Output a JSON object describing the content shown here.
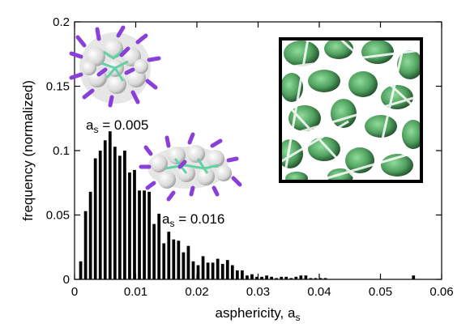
{
  "chart_data": {
    "type": "bar",
    "title": "",
    "xlabel": "asphericity, a",
    "xlabel_sub": "s",
    "ylabel": "frequency (normalized)",
    "xlim": [
      0,
      0.06
    ],
    "ylim": [
      0,
      0.2
    ],
    "xticks": [
      0,
      0.01,
      0.02,
      0.03,
      0.04,
      0.05,
      0.06
    ],
    "xtick_labels": [
      "0",
      "0.01",
      "0.02",
      "0.03",
      "0.04",
      "0.05",
      "0.06"
    ],
    "yticks": [
      0,
      0.05,
      0.1,
      0.15,
      0.2
    ],
    "ytick_labels": [
      "0",
      "0.05",
      "0.1",
      "0.15",
      "0.2"
    ],
    "grid": false,
    "bin_width": 0.0008,
    "x": [
      0.001,
      0.0018,
      0.0026,
      0.0034,
      0.0042,
      0.005,
      0.0058,
      0.0066,
      0.0074,
      0.0082,
      0.009,
      0.0098,
      0.0106,
      0.0114,
      0.0122,
      0.013,
      0.0138,
      0.0146,
      0.0154,
      0.0162,
      0.017,
      0.0178,
      0.0186,
      0.0194,
      0.0202,
      0.021,
      0.0218,
      0.0226,
      0.0234,
      0.0242,
      0.025,
      0.0258,
      0.0266,
      0.0274,
      0.0282,
      0.029,
      0.0298,
      0.0306,
      0.0314,
      0.0322,
      0.033,
      0.0338,
      0.0346,
      0.0354,
      0.0362,
      0.037,
      0.0378,
      0.0386,
      0.0394,
      0.0402,
      0.041,
      0.0554
    ],
    "values": [
      0.014,
      0.053,
      0.068,
      0.094,
      0.1,
      0.108,
      0.115,
      0.103,
      0.096,
      0.1,
      0.083,
      0.085,
      0.069,
      0.069,
      0.068,
      0.043,
      0.051,
      0.028,
      0.037,
      0.031,
      0.03,
      0.021,
      0.026,
      0.014,
      0.011,
      0.018,
      0.013,
      0.013,
      0.016,
      0.012,
      0.015,
      0.011,
      0.007,
      0.007,
      0.003,
      0.004,
      0.002,
      0.002,
      0.003,
      0.002,
      0.001,
      0.002,
      0.002,
      0.001,
      0.002,
      0.003,
      0.003,
      0.001,
      0.001,
      0.001,
      0.001,
      0.003
    ],
    "annotations": [
      {
        "text": "a",
        "sub": "s",
        "rest": " = 0.005"
      },
      {
        "text": "a",
        "sub": "s",
        "rest": " = 0.016"
      }
    ],
    "colors": {
      "bar": "#000000",
      "inset_green": "#4f9f5e",
      "inset_dark": "#1f4a28",
      "molecule_purple": "#8a3fd9",
      "molecule_white": "#e6e6e6",
      "molecule_teal": "#62d2a4"
    }
  }
}
